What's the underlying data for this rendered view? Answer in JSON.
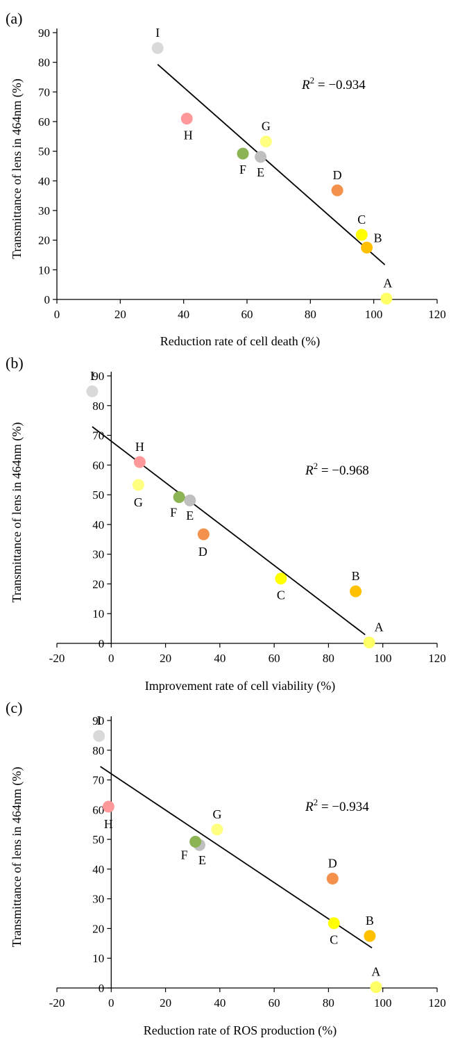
{
  "chart_data": [
    {
      "type": "scatter",
      "panel_label": "(a)",
      "xlabel": "Reduction rate of cell death (%)",
      "ylabel": "Transmittance of lens in 464nm (%)",
      "xlim": [
        0,
        120
      ],
      "ylim": [
        0,
        90
      ],
      "xticks": [
        0,
        20,
        40,
        60,
        80,
        100,
        120
      ],
      "yticks": [
        0,
        10,
        20,
        30,
        40,
        50,
        60,
        70,
        80,
        90
      ],
      "xtick_labels": [
        "0",
        "20",
        "40",
        "60",
        "80",
        "100",
        "120"
      ],
      "ytick_labels": [
        "0",
        "10",
        "20",
        "30",
        "40",
        "50",
        "60",
        "70",
        "80",
        "90"
      ],
      "r2_label": "R",
      "r2_sup": "2",
      "r2_value": " = −0.934",
      "trendline": {
        "x": [
          31.8,
          103.5
        ],
        "y": [
          79.3,
          11.7
        ]
      },
      "points": [
        {
          "label": "A",
          "x": 104.0,
          "y": 0.3,
          "color": "#ffff66"
        },
        {
          "label": "B",
          "x": 97.8,
          "y": 17.5,
          "color": "#ffc000"
        },
        {
          "label": "C",
          "x": 96.2,
          "y": 21.8,
          "color": "#ffff00"
        },
        {
          "label": "D",
          "x": 88.5,
          "y": 36.8,
          "color": "#f4914c"
        },
        {
          "label": "E",
          "x": 64.3,
          "y": 48.1,
          "color": "#bfbfbf"
        },
        {
          "label": "F",
          "x": 58.7,
          "y": 49.2,
          "color": "#8cb454"
        },
        {
          "label": "G",
          "x": 66.0,
          "y": 53.3,
          "color": "#ffff80"
        },
        {
          "label": "H",
          "x": 41.0,
          "y": 61.0,
          "color": "#ff9999"
        },
        {
          "label": "I",
          "x": 31.8,
          "y": 84.8,
          "color": "#d9d9d9"
        }
      ]
    },
    {
      "type": "scatter",
      "panel_label": "(b)",
      "xlabel": "Improvement rate of cell viability (%)",
      "ylabel": "Transmittance of lens in 464nm (%)",
      "xlim": [
        -20,
        120
      ],
      "ylim": [
        0,
        90
      ],
      "xticks": [
        -20,
        0,
        20,
        40,
        60,
        80,
        100,
        120
      ],
      "yticks": [
        0,
        10,
        20,
        30,
        40,
        50,
        60,
        70,
        80,
        90
      ],
      "xtick_labels": [
        "-20",
        "0",
        "20",
        "40",
        "60",
        "80",
        "100",
        "120"
      ],
      "ytick_labels": [
        "0",
        "10",
        "20",
        "30",
        "40",
        "50",
        "60",
        "70",
        "80",
        "90"
      ],
      "r2_label": "R",
      "r2_sup": "2",
      "r2_value": " = −0.968",
      "trendline": {
        "x": [
          -7.0,
          93.5
        ],
        "y": [
          72.9,
          2.9
        ]
      },
      "points": [
        {
          "label": "A",
          "x": 95.0,
          "y": 0.3,
          "color": "#ffff66"
        },
        {
          "label": "B",
          "x": 90.0,
          "y": 17.5,
          "color": "#ffc000"
        },
        {
          "label": "C",
          "x": 62.5,
          "y": 21.8,
          "color": "#ffff00"
        },
        {
          "label": "D",
          "x": 34.0,
          "y": 36.7,
          "color": "#f4914c"
        },
        {
          "label": "E",
          "x": 29.0,
          "y": 48.1,
          "color": "#bfbfbf"
        },
        {
          "label": "F",
          "x": 25.0,
          "y": 49.2,
          "color": "#8cb454"
        },
        {
          "label": "G",
          "x": 10.0,
          "y": 53.3,
          "color": "#ffff80"
        },
        {
          "label": "H",
          "x": 10.5,
          "y": 61.0,
          "color": "#ff9999"
        },
        {
          "label": "I",
          "x": -7.0,
          "y": 84.8,
          "color": "#d9d9d9"
        }
      ]
    },
    {
      "type": "scatter",
      "panel_label": "(c)",
      "xlabel": "Reduction rate of ROS production (%)",
      "ylabel": "Transmittance of lens in 464nm (%)",
      "xlim": [
        -20,
        120
      ],
      "ylim": [
        0,
        90
      ],
      "xticks": [
        -20,
        0,
        20,
        40,
        60,
        80,
        100,
        120
      ],
      "yticks": [
        0,
        10,
        20,
        30,
        40,
        50,
        60,
        70,
        80,
        90
      ],
      "xtick_labels": [
        "-20",
        "0",
        "20",
        "40",
        "60",
        "80",
        "100",
        "120"
      ],
      "ytick_labels": [
        "0",
        "10",
        "20",
        "30",
        "40",
        "50",
        "60",
        "70",
        "80",
        "90"
      ],
      "r2_label": "R",
      "r2_sup": "2",
      "r2_value": " = −0.934",
      "trendline": {
        "x": [
          -4.0,
          96.0
        ],
        "y": [
          74.5,
          13.5
        ]
      },
      "points": [
        {
          "label": "A",
          "x": 97.5,
          "y": 0.3,
          "color": "#ffff66"
        },
        {
          "label": "B",
          "x": 95.2,
          "y": 17.5,
          "color": "#ffc000"
        },
        {
          "label": "C",
          "x": 82.0,
          "y": 21.8,
          "color": "#ffff00"
        },
        {
          "label": "D",
          "x": 81.5,
          "y": 36.8,
          "color": "#f4914c"
        },
        {
          "label": "E",
          "x": 32.5,
          "y": 48.1,
          "color": "#bfbfbf"
        },
        {
          "label": "F",
          "x": 31.0,
          "y": 49.2,
          "color": "#8cb454"
        },
        {
          "label": "G",
          "x": 39.0,
          "y": 53.3,
          "color": "#ffff80"
        },
        {
          "label": "H",
          "x": -1.0,
          "y": 61.0,
          "color": "#ff9999"
        },
        {
          "label": "I",
          "x": -4.5,
          "y": 84.8,
          "color": "#d9d9d9"
        }
      ]
    }
  ]
}
